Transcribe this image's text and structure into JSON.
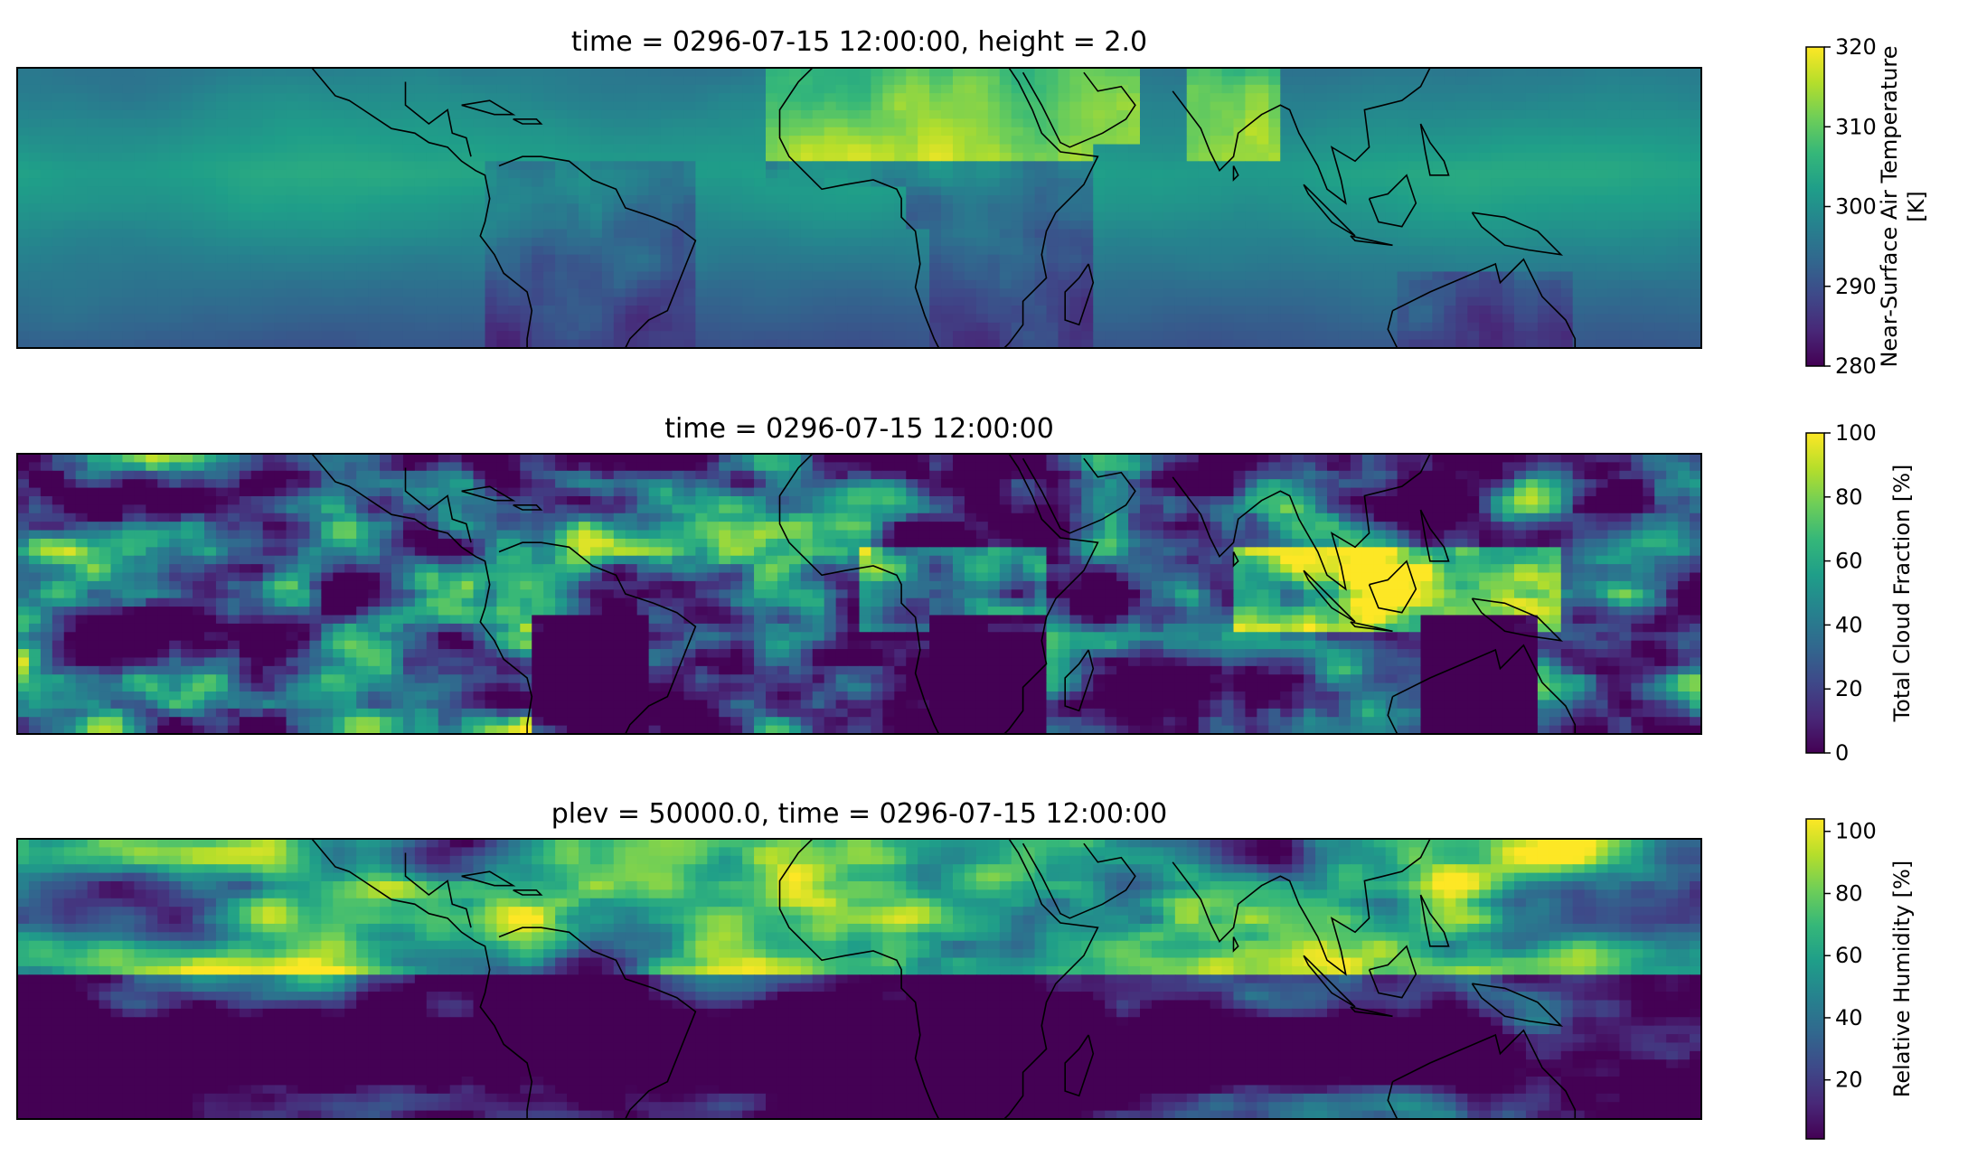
{
  "colormap": {
    "name": "viridis",
    "stops": [
      "#440154",
      "#482878",
      "#3e4989",
      "#31688e",
      "#26828e",
      "#1f9e89",
      "#35b779",
      "#6ece58",
      "#b5de2b",
      "#fde725"
    ]
  },
  "chart_data": [
    {
      "type": "heatmap",
      "title": "time = 0296-07-15 12:00:00, height = 2.0",
      "colorbar": {
        "label_lines": [
          "Near-Surface Air Temperature",
          "[K]"
        ],
        "range": [
          280,
          320
        ],
        "ticks": [
          280,
          290,
          300,
          310,
          320
        ]
      }
    },
    {
      "type": "heatmap",
      "title": "time = 0296-07-15 12:00:00",
      "colorbar": {
        "label_lines": [
          "Total Cloud Fraction [%]"
        ],
        "range": [
          0,
          100
        ],
        "ticks": [
          0,
          20,
          40,
          60,
          80,
          100
        ]
      }
    },
    {
      "type": "heatmap",
      "title": "plev = 50000.0, time = 0296-07-15 12:00:00",
      "colorbar": {
        "label_lines": [
          "Relative Humidity [%]"
        ],
        "range": [
          1,
          104
        ],
        "ticks": [
          20,
          40,
          60,
          80,
          100
        ]
      }
    }
  ]
}
